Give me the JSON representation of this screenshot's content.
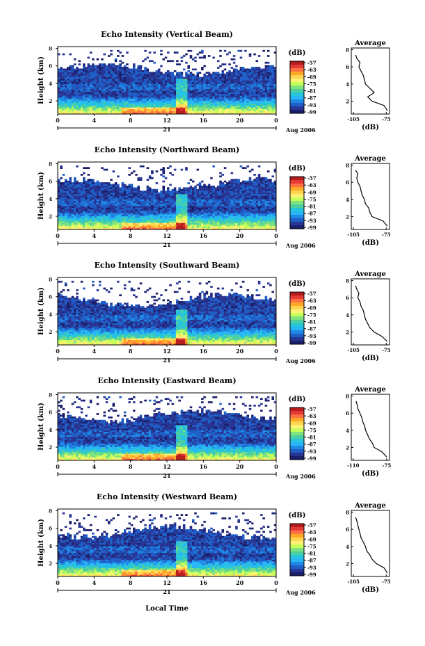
{
  "figure": {
    "date_label": "Aug 2006",
    "x_axis_title": "Local Time",
    "day_label": "21",
    "colorbar_unit": "(dB)",
    "average_title": "Average",
    "average_xlabel": "(dB)",
    "ylabel": "Height (km)"
  },
  "colorscale": {
    "ticks": [
      "-57",
      "-63",
      "-69",
      "-75",
      "-81",
      "-87",
      "-93",
      "-99"
    ],
    "colors_top_to_bottom": [
      "#b71c1c",
      "#e53935",
      "#ff7043",
      "#ffa726",
      "#ffd54f",
      "#fff176",
      "#c6ff5a",
      "#80e27e",
      "#4dd0a1",
      "#26c6da",
      "#29b6f6",
      "#1e88e5",
      "#1f5fc7",
      "#283593",
      "#1a1f6b"
    ]
  },
  "chart_data": [
    {
      "type": "heatmap",
      "title": "Echo Intensity (Vertical Beam)",
      "ylabel": "Height (km)",
      "x_ticks": [
        "0",
        "4",
        "8",
        "12",
        "16",
        "20",
        "0"
      ],
      "y_ticks": [
        "2",
        "4",
        "6",
        "8"
      ],
      "xlim": [
        0,
        24
      ],
      "ylim": [
        0.5,
        8.2
      ],
      "colorbar_range_dB": [
        -99,
        -57
      ],
      "average_profile": {
        "title": "Average",
        "xlabel": "(dB)",
        "x_ticks": [
          "-105",
          "-75"
        ],
        "y_ticks": [
          "2",
          "4",
          "6",
          "8"
        ],
        "xlim": [
          -107,
          -72
        ],
        "height_km": [
          0.9,
          1.5,
          2.0,
          2.5,
          3.0,
          3.5,
          4.0,
          4.5,
          5.0,
          5.5,
          6.0,
          6.5,
          7.0,
          7.4
        ],
        "dB": [
          -74,
          -77,
          -88,
          -92,
          -86,
          -90,
          -94,
          -95,
          -96,
          -98,
          -100,
          -99,
          -102,
          -103
        ]
      }
    },
    {
      "type": "heatmap",
      "title": "Echo Intensity (Northward Beam)",
      "ylabel": "Height (km)",
      "x_ticks": [
        "0",
        "4",
        "8",
        "12",
        "16",
        "20",
        "0"
      ],
      "y_ticks": [
        "2",
        "4",
        "6",
        "8"
      ],
      "xlim": [
        0,
        24
      ],
      "ylim": [
        0.5,
        8.2
      ],
      "colorbar_range_dB": [
        -99,
        -57
      ],
      "average_profile": {
        "title": "Average",
        "xlabel": "(dB)",
        "x_ticks": [
          "-105",
          "-75"
        ],
        "y_ticks": [
          "2",
          "4",
          "6",
          "8"
        ],
        "xlim": [
          -107,
          -72
        ],
        "height_km": [
          0.9,
          1.5,
          2.0,
          2.5,
          3.0,
          3.5,
          4.0,
          4.5,
          5.0,
          5.5,
          6.0,
          6.5,
          7.0,
          7.4
        ],
        "dB": [
          -74,
          -78,
          -88,
          -90,
          -91,
          -94,
          -95,
          -97,
          -98,
          -99,
          -101,
          -102,
          -101,
          -103
        ]
      }
    },
    {
      "type": "heatmap",
      "title": "Echo Intensity (Southward Beam)",
      "ylabel": "Height (km)",
      "x_ticks": [
        "0",
        "4",
        "8",
        "12",
        "16",
        "20",
        "0"
      ],
      "y_ticks": [
        "2",
        "4",
        "6",
        "8"
      ],
      "xlim": [
        0,
        24
      ],
      "ylim": [
        0.5,
        8.2
      ],
      "colorbar_range_dB": [
        -99,
        -57
      ],
      "average_profile": {
        "title": "Average",
        "xlabel": "(dB)",
        "x_ticks": [
          "-105",
          "-75"
        ],
        "y_ticks": [
          "2",
          "4",
          "6",
          "8"
        ],
        "xlim": [
          -107,
          -72
        ],
        "height_km": [
          0.9,
          1.5,
          2.0,
          2.5,
          3.0,
          3.5,
          4.0,
          4.5,
          5.0,
          5.5,
          6.0,
          6.5,
          7.0,
          7.4
        ],
        "dB": [
          -74,
          -79,
          -86,
          -90,
          -92,
          -94,
          -95,
          -96,
          -98,
          -99,
          -101,
          -100,
          -102,
          -103
        ]
      }
    },
    {
      "type": "heatmap",
      "title": "Echo Intensity (Eastward Beam)",
      "ylabel": "Height (km)",
      "x_ticks": [
        "0",
        "4",
        "8",
        "12",
        "16",
        "20",
        "0"
      ],
      "y_ticks": [
        "2",
        "4",
        "6",
        "8"
      ],
      "xlim": [
        0,
        24
      ],
      "ylim": [
        0.5,
        8.2
      ],
      "colorbar_range_dB": [
        -99,
        -57
      ],
      "average_profile": {
        "title": "Average",
        "xlabel": "(dB)",
        "x_ticks": [
          "-110",
          "-75"
        ],
        "y_ticks": [
          "2",
          "4",
          "6",
          "8"
        ],
        "xlim": [
          -112,
          -72
        ],
        "height_km": [
          0.9,
          1.5,
          2.0,
          2.5,
          3.0,
          3.5,
          4.0,
          4.5,
          5.0,
          5.5,
          6.0,
          6.5,
          7.0,
          7.4
        ],
        "dB": [
          -75,
          -80,
          -88,
          -90,
          -93,
          -95,
          -97,
          -98,
          -100,
          -101,
          -103,
          -105,
          -106,
          -107
        ]
      }
    },
    {
      "type": "heatmap",
      "title": "Echo Intensity (Westward Beam)",
      "ylabel": "Height (km)",
      "x_ticks": [
        "0",
        "4",
        "8",
        "12",
        "16",
        "20",
        "0"
      ],
      "y_ticks": [
        "2",
        "4",
        "6",
        "8"
      ],
      "xlim": [
        0,
        24
      ],
      "ylim": [
        0.5,
        8.2
      ],
      "colorbar_range_dB": [
        -99,
        -57
      ],
      "average_profile": {
        "title": "Average",
        "xlabel": "(dB)",
        "x_ticks": [
          "-105",
          "-75"
        ],
        "y_ticks": [
          "2",
          "4",
          "6",
          "8"
        ],
        "xlim": [
          -107,
          -72
        ],
        "height_km": [
          0.9,
          1.5,
          2.0,
          2.5,
          3.0,
          3.5,
          4.0,
          4.5,
          5.0,
          5.5,
          6.0,
          6.5,
          7.0,
          7.4
        ],
        "dB": [
          -74,
          -77,
          -84,
          -88,
          -90,
          -93,
          -94,
          -96,
          -98,
          -99,
          -100,
          -101,
          -102,
          -103
        ]
      }
    }
  ]
}
